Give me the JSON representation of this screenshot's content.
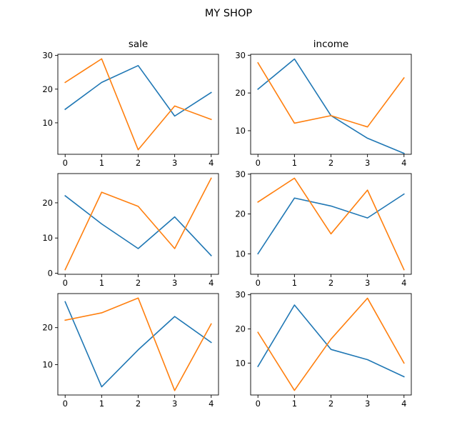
{
  "figure": {
    "title": "MY SHOP"
  },
  "chart_data": [
    {
      "type": "line",
      "title": "sale",
      "x": [
        0,
        1,
        2,
        3,
        4
      ],
      "ylim": [
        0.65,
        30.35
      ],
      "yticks": [
        10,
        20,
        30
      ],
      "series": [
        {
          "values": [
            14,
            22,
            27,
            12,
            19
          ],
          "color": "#1f77b4"
        },
        {
          "values": [
            22,
            29,
            2,
            15,
            11
          ],
          "color": "#ff7f0e"
        }
      ]
    },
    {
      "type": "line",
      "title": "income",
      "x": [
        0,
        1,
        2,
        3,
        4
      ],
      "ylim": [
        3.75,
        30.25
      ],
      "yticks": [
        10,
        20,
        30
      ],
      "series": [
        {
          "values": [
            21,
            29,
            14,
            8,
            4
          ],
          "color": "#1f77b4"
        },
        {
          "values": [
            28,
            12,
            14,
            11,
            24
          ],
          "color": "#ff7f0e"
        }
      ]
    },
    {
      "type": "line",
      "title": "",
      "x": [
        0,
        1,
        2,
        3,
        4
      ],
      "ylim": [
        -0.3,
        28.3
      ],
      "yticks": [
        0,
        10,
        20
      ],
      "series": [
        {
          "values": [
            22,
            14,
            7,
            16,
            5
          ],
          "color": "#1f77b4"
        },
        {
          "values": [
            1,
            23,
            19,
            7,
            27
          ],
          "color": "#ff7f0e"
        }
      ]
    },
    {
      "type": "line",
      "title": "",
      "x": [
        0,
        1,
        2,
        3,
        4
      ],
      "ylim": [
        4.85,
        30.15
      ],
      "yticks": [
        10,
        20,
        30
      ],
      "series": [
        {
          "values": [
            10,
            24,
            22,
            19,
            25
          ],
          "color": "#1f77b4"
        },
        {
          "values": [
            23,
            29,
            15,
            26,
            6
          ],
          "color": "#ff7f0e"
        }
      ]
    },
    {
      "type": "line",
      "title": "",
      "x": [
        0,
        1,
        2,
        3,
        4
      ],
      "ylim": [
        1.8,
        29.2
      ],
      "yticks": [
        10,
        20
      ],
      "series": [
        {
          "values": [
            27,
            4,
            14,
            23,
            16
          ],
          "color": "#1f77b4"
        },
        {
          "values": [
            22,
            24,
            28,
            3,
            21
          ],
          "color": "#ff7f0e"
        }
      ]
    },
    {
      "type": "line",
      "title": "",
      "x": [
        0,
        1,
        2,
        3,
        4
      ],
      "ylim": [
        0.65,
        30.35
      ],
      "yticks": [
        10,
        20,
        30
      ],
      "series": [
        {
          "values": [
            9,
            27,
            14,
            11,
            6
          ],
          "color": "#1f77b4"
        },
        {
          "values": [
            19,
            2,
            17,
            29,
            10
          ],
          "color": "#ff7f0e"
        }
      ]
    }
  ]
}
